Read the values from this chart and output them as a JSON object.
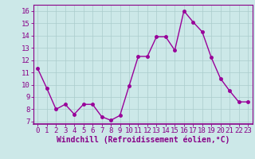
{
  "x": [
    0,
    1,
    2,
    3,
    4,
    5,
    6,
    7,
    8,
    9,
    10,
    11,
    12,
    13,
    14,
    15,
    16,
    17,
    18,
    19,
    20,
    21,
    22,
    23
  ],
  "y": [
    11.3,
    9.7,
    8.0,
    8.4,
    7.6,
    8.4,
    8.4,
    7.4,
    7.1,
    7.5,
    9.9,
    12.3,
    12.3,
    13.9,
    13.9,
    12.8,
    16.0,
    15.1,
    14.3,
    12.2,
    10.5,
    9.5,
    8.6,
    8.6
  ],
  "line_color": "#990099",
  "marker_color": "#990099",
  "bg_color": "#cce8e8",
  "grid_color": "#aacccc",
  "xlabel": "Windchill (Refroidissement éolien,°C)",
  "ylabel": "",
  "xlim": [
    -0.5,
    23.5
  ],
  "ylim": [
    6.8,
    16.5
  ],
  "yticks": [
    7,
    8,
    9,
    10,
    11,
    12,
    13,
    14,
    15,
    16
  ],
  "xticks": [
    0,
    1,
    2,
    3,
    4,
    5,
    6,
    7,
    8,
    9,
    10,
    11,
    12,
    13,
    14,
    15,
    16,
    17,
    18,
    19,
    20,
    21,
    22,
    23
  ],
  "tick_fontsize": 6.5,
  "xlabel_fontsize": 7,
  "marker_size": 2.5,
  "line_width": 1.0,
  "axis_color": "#880088"
}
